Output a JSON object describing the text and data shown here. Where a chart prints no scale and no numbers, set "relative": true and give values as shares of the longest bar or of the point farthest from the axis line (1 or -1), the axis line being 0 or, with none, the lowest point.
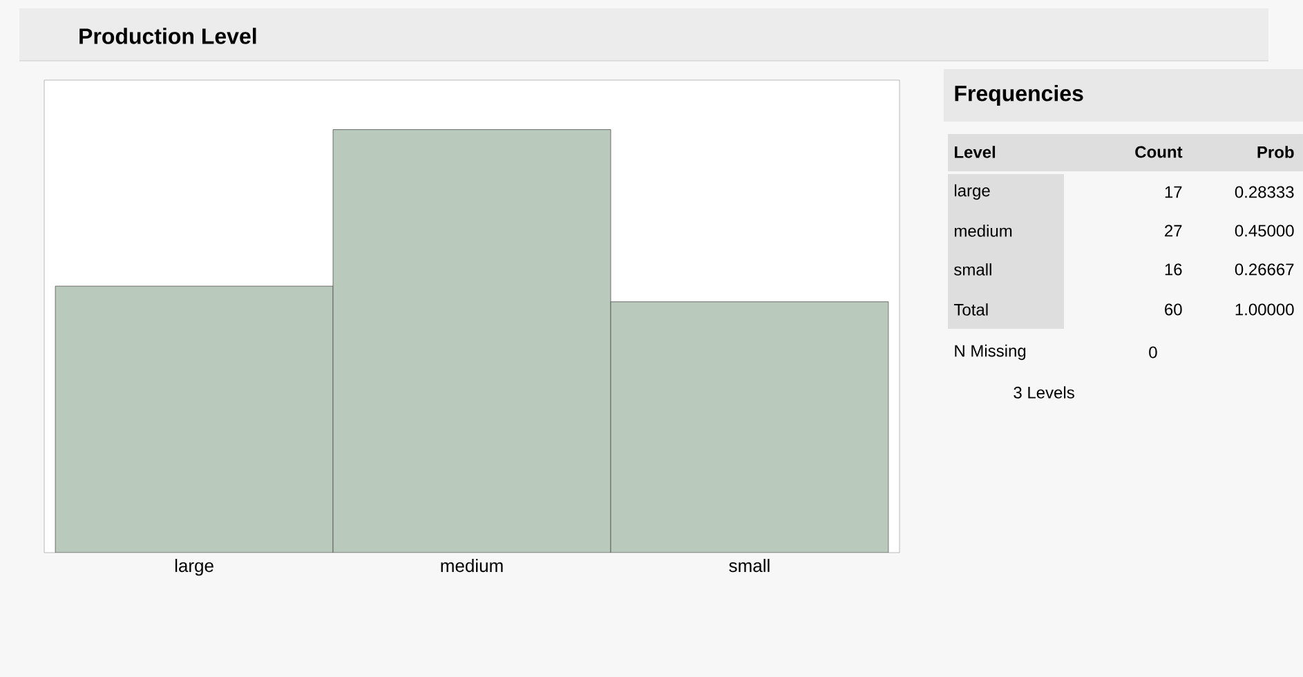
{
  "chart_data": {
    "type": "bar",
    "title": "Production Level",
    "categories": [
      "large",
      "medium",
      "small"
    ],
    "values": [
      0.63,
      1,
      0.593
    ],
    "relative": true,
    "color": "#b9c9bb",
    "tick_labels": "x",
    "annotations": [
      "Frequencies",
      "Level",
      "Count",
      "Prob",
      "17",
      "0.28333",
      "27",
      "0.45000",
      "16",
      "0.26667",
      "Total",
      "60",
      "1.00000",
      "N Missing",
      "0",
      "3  Levels"
    ]
  }
}
